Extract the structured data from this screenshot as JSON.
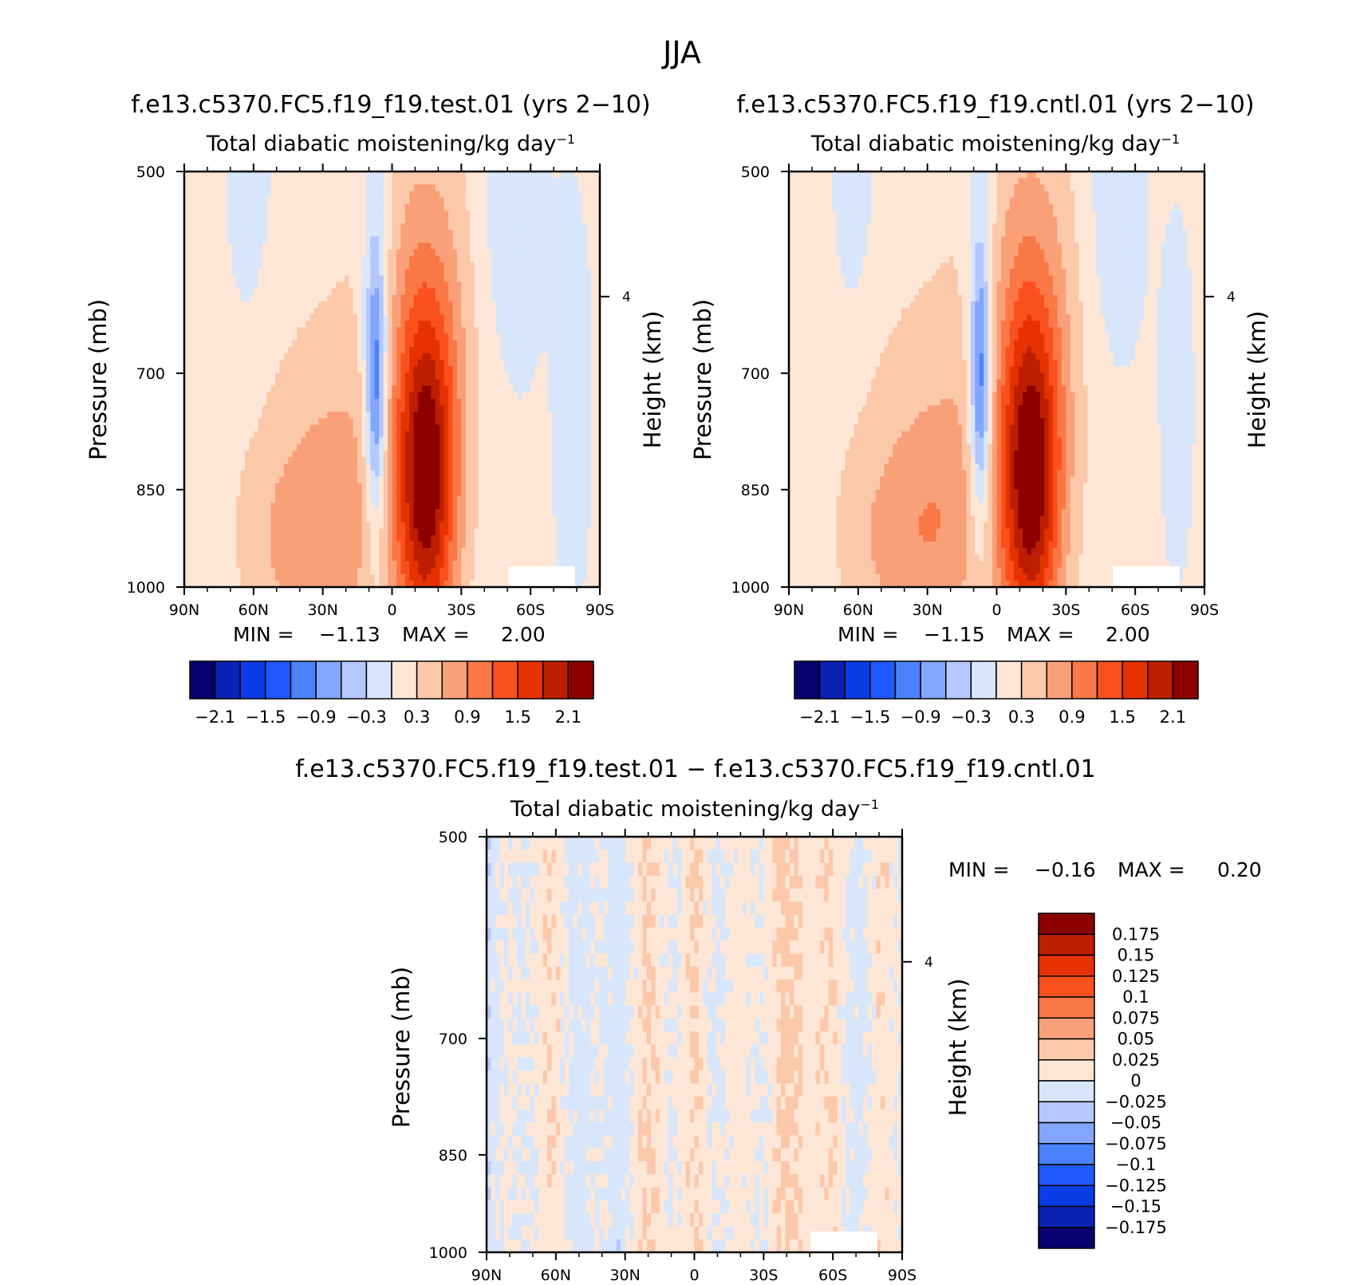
{
  "figure": {
    "title": "JJA",
    "colors": {
      "full_palette": [
        "#08006e",
        "#0a23b4",
        "#0a3ce6",
        "#1e5aff",
        "#4b82ff",
        "#82a5ff",
        "#b4c8ff",
        "#d7e6fa",
        "#fde6d6",
        "#fcc8aa",
        "#faa078",
        "#fa7846",
        "#fa501e",
        "#e63200",
        "#be1e00",
        "#8c0000"
      ],
      "diff_palette": [
        "#08006e",
        "#0a23b4",
        "#0a3ce6",
        "#1e5aff",
        "#4b82ff",
        "#82a5ff",
        "#b4c8ff",
        "#d7e6fa",
        "#fde6d6",
        "#fcc8aa",
        "#faa078",
        "#fa7846",
        "#fa501e",
        "#e63200",
        "#be1e00",
        "#8c0000"
      ]
    }
  },
  "chart_data": [
    {
      "type": "heatmap",
      "title": "f.e13.c5370.FC5.f19_f19.test.01 (yrs 2−10)",
      "subtitle": "Total diabatic moistening/kg day",
      "subtitle_sup": "−1",
      "xlabel": "",
      "ylabel": "Pressure (mb)",
      "y2label": "Height (km)",
      "x_ticks": [
        "90N",
        "60N",
        "30N",
        "0",
        "30S",
        "60S",
        "90S"
      ],
      "y_ticks": [
        "500",
        "700",
        "850",
        "1000"
      ],
      "y_tick_values": [
        500,
        700,
        850,
        1000
      ],
      "y2_ticks": [
        "4"
      ],
      "ylim": [
        1000,
        500
      ],
      "xlim": [
        90,
        -90
      ],
      "min_label": "MIN =",
      "min_value": "−1.13",
      "max_label": "MAX =",
      "max_value": "2.00",
      "colorbar_labels": [
        "−2.1",
        "−1.5",
        "−0.9",
        "−0.3",
        "0.3",
        "0.9",
        "1.5",
        "2.1"
      ],
      "colorbar_levels": [
        -2.1,
        -1.8,
        -1.5,
        -1.2,
        -0.9,
        -0.6,
        -0.3,
        0,
        0.3,
        0.6,
        0.9,
        1.2,
        1.5,
        1.8,
        2.1
      ],
      "data_summary": "Negative core near 8N, 700-900 mb; strong positive max (~2.0) near 15S, 800-1000 mb; weak values elsewhere."
    },
    {
      "type": "heatmap",
      "title": "f.e13.c5370.FC5.f19_f19.cntl.01 (yrs 2−10)",
      "subtitle": "Total diabatic moistening/kg day",
      "subtitle_sup": "−1",
      "xlabel": "",
      "ylabel": "Pressure (mb)",
      "y2label": "Height (km)",
      "x_ticks": [
        "90N",
        "60N",
        "30N",
        "0",
        "30S",
        "60S",
        "90S"
      ],
      "y_ticks": [
        "500",
        "700",
        "850",
        "1000"
      ],
      "y_tick_values": [
        500,
        700,
        850,
        1000
      ],
      "y2_ticks": [
        "4"
      ],
      "ylim": [
        1000,
        500
      ],
      "xlim": [
        90,
        -90
      ],
      "min_label": "MIN =",
      "min_value": "−1.15",
      "max_label": "MAX =",
      "max_value": "2.00",
      "colorbar_labels": [
        "−2.1",
        "−1.5",
        "−0.9",
        "−0.3",
        "0.3",
        "0.9",
        "1.5",
        "2.1"
      ],
      "colorbar_levels": [
        -2.1,
        -1.8,
        -1.5,
        -1.2,
        -0.9,
        -0.6,
        -0.3,
        0,
        0.3,
        0.6,
        0.9,
        1.2,
        1.5,
        1.8,
        2.1
      ]
    },
    {
      "type": "heatmap",
      "title": "f.e13.c5370.FC5.f19_f19.test.01 − f.e13.c5370.FC5.f19_f19.cntl.01",
      "subtitle": "Total diabatic moistening/kg day",
      "subtitle_sup": "−1",
      "xlabel": "",
      "ylabel": "Pressure (mb)",
      "y2label": "Height (km)",
      "x_ticks": [
        "90N",
        "60N",
        "30N",
        "0",
        "30S",
        "60S",
        "90S"
      ],
      "y_ticks": [
        "500",
        "700",
        "850",
        "1000"
      ],
      "y_tick_values": [
        500,
        700,
        850,
        1000
      ],
      "y2_ticks": [
        "4"
      ],
      "ylim": [
        1000,
        500
      ],
      "xlim": [
        90,
        -90
      ],
      "min_label": "MIN =",
      "min_value": "−0.16",
      "max_label": "MAX =",
      "max_value": "0.20",
      "colorbar_labels": [
        "0.175",
        "0.15",
        "0.125",
        "0.1",
        "0.075",
        "0.05",
        "0.025",
        "0",
        "−0.025",
        "−0.05",
        "−0.075",
        "−0.1",
        "−0.125",
        "−0.15",
        "−0.175"
      ],
      "colorbar_levels": [
        0.175,
        0.15,
        0.125,
        0.1,
        0.075,
        0.05,
        0.025,
        0,
        -0.025,
        -0.05,
        -0.075,
        -0.1,
        -0.125,
        -0.15,
        -0.175
      ]
    }
  ]
}
